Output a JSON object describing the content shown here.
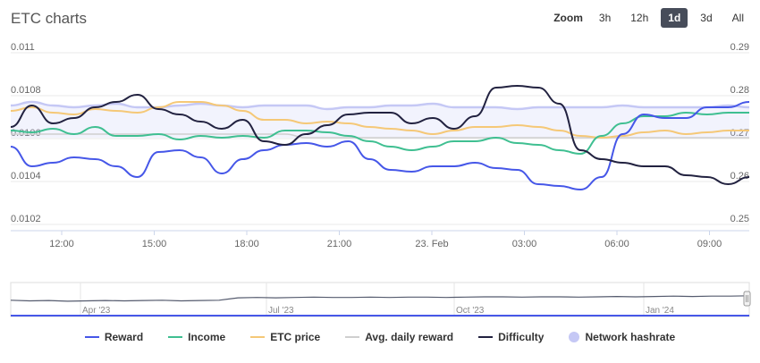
{
  "header": {
    "title": "ETC charts",
    "zoom_label": "Zoom",
    "zoom_buttons": [
      "3h",
      "12h",
      "1d",
      "3d",
      "All"
    ],
    "zoom_active": "1d"
  },
  "legend": {
    "items": [
      {
        "label": "Reward",
        "color": "#4657e8",
        "kind": "line"
      },
      {
        "label": "Income",
        "color": "#3fbf91",
        "kind": "line"
      },
      {
        "label": "ETC price",
        "color": "#f5c877",
        "kind": "line"
      },
      {
        "label": "Avg. daily reward",
        "color": "#cfcfcf",
        "kind": "line"
      },
      {
        "label": "Difficulty",
        "color": "#222240",
        "kind": "line"
      },
      {
        "label": "Network hashrate",
        "color": "#c5c8f5",
        "kind": "dot"
      }
    ]
  },
  "chart_data": {
    "type": "line",
    "x_ticks": [
      "12:00",
      "15:00",
      "18:00",
      "21:00",
      "23. Feb",
      "03:00",
      "06:00",
      "09:00"
    ],
    "y_left_ticks": [
      "0.011",
      "0.0108",
      "0.0106",
      "0.0104",
      "0.0102"
    ],
    "y_right_ticks": [
      "0.29",
      "0.28",
      "0.27",
      "0.26",
      "0.25"
    ],
    "y_left_range": [
      0.0101,
      0.0111
    ],
    "y_right_range": [
      0.245,
      0.29
    ],
    "grid": true,
    "legend_position": "bottom",
    "series": [
      {
        "name": "Network hashrate",
        "axis": "left",
        "color": "#c5c8f5",
        "values": [
          0.0108,
          0.01082,
          0.0108,
          0.01079,
          0.0108,
          0.01081,
          0.01079,
          0.01079,
          0.0108,
          0.01081,
          0.0108,
          0.01079,
          0.0108,
          0.0108,
          0.0108,
          0.01078,
          0.01079,
          0.01079,
          0.0108,
          0.0108,
          0.01081,
          0.01079,
          0.01079,
          0.01079,
          0.01078,
          0.01079,
          0.01079,
          0.01079,
          0.01079,
          0.0108,
          0.01079,
          0.01079,
          0.01079,
          0.01079,
          0.0108,
          0.01079
        ]
      },
      {
        "name": "Avg. daily reward",
        "axis": "left",
        "color": "#cfcfcf",
        "values": [
          0.01064,
          0.01064,
          0.01064,
          0.01064,
          0.01064,
          0.01064,
          0.01064,
          0.01064,
          0.01064,
          0.01064,
          0.01064,
          0.01064,
          0.01064,
          0.01064,
          0.01062,
          0.01062,
          0.01062,
          0.01062,
          0.01062,
          0.01062,
          0.01062,
          0.01062,
          0.01062,
          0.01062,
          0.01062,
          0.01062,
          0.01062,
          0.01062,
          0.01062,
          0.01062,
          0.01062,
          0.01062,
          0.01062,
          0.01062,
          0.01062,
          0.01062
        ]
      },
      {
        "name": "ETC price",
        "axis": "left",
        "color": "#f5c877",
        "values": [
          0.01077,
          0.01079,
          0.01076,
          0.01075,
          0.01078,
          0.01077,
          0.01076,
          0.01079,
          0.01082,
          0.01082,
          0.0108,
          0.01077,
          0.01072,
          0.01072,
          0.0107,
          0.01071,
          0.0107,
          0.01068,
          0.01067,
          0.01066,
          0.01064,
          0.01066,
          0.01068,
          0.01068,
          0.01069,
          0.01068,
          0.01066,
          0.01063,
          0.01062,
          0.01063,
          0.01065,
          0.01066,
          0.01064,
          0.01065,
          0.01066,
          0.01066
        ]
      },
      {
        "name": "Income",
        "axis": "left",
        "color": "#3fbf91",
        "values": [
          0.01066,
          0.01065,
          0.01067,
          0.01064,
          0.01068,
          0.01063,
          0.01063,
          0.01064,
          0.01061,
          0.01063,
          0.01062,
          0.01063,
          0.01062,
          0.01066,
          0.01066,
          0.01065,
          0.01063,
          0.0106,
          0.01057,
          0.01055,
          0.01057,
          0.0106,
          0.0106,
          0.01062,
          0.01059,
          0.01058,
          0.01055,
          0.01053,
          0.01063,
          0.0107,
          0.01074,
          0.01074,
          0.01076,
          0.01075,
          0.01076,
          0.01076
        ]
      },
      {
        "name": "Reward",
        "axis": "left",
        "color": "#4657e8",
        "values": [
          0.01057,
          0.01046,
          0.01048,
          0.01051,
          0.0105,
          0.01046,
          0.0104,
          0.01054,
          0.01055,
          0.01051,
          0.01042,
          0.0105,
          0.01055,
          0.01058,
          0.01059,
          0.01057,
          0.0106,
          0.0105,
          0.01044,
          0.01043,
          0.01046,
          0.01046,
          0.01048,
          0.01045,
          0.01044,
          0.01036,
          0.01035,
          0.01033,
          0.0104,
          0.01064,
          0.01075,
          0.01073,
          0.01073,
          0.01079,
          0.01079,
          0.01082
        ]
      },
      {
        "name": "Difficulty",
        "axis": "left",
        "color": "#222240",
        "values": [
          0.01068,
          0.0108,
          0.0107,
          0.01073,
          0.01079,
          0.01082,
          0.01086,
          0.01078,
          0.01075,
          0.01071,
          0.01067,
          0.01072,
          0.0106,
          0.01058,
          0.01064,
          0.01069,
          0.01075,
          0.01076,
          0.01076,
          0.0107,
          0.01073,
          0.01067,
          0.01074,
          0.0109,
          0.01091,
          0.0109,
          0.01081,
          0.01055,
          0.0105,
          0.01048,
          0.01046,
          0.01046,
          0.01041,
          0.0104,
          0.01036,
          0.0104
        ]
      }
    ]
  },
  "navigator": {
    "labels": [
      "Apr '23",
      "Jul '23",
      "Oct '23",
      "Jan '24"
    ],
    "series": [
      0.48,
      0.46,
      0.47,
      0.45,
      0.46,
      0.47,
      0.46,
      0.47,
      0.48,
      0.46,
      0.47,
      0.48,
      0.55,
      0.56,
      0.55,
      0.56,
      0.57,
      0.56,
      0.56,
      0.57,
      0.56,
      0.57,
      0.57,
      0.56,
      0.57,
      0.58,
      0.58,
      0.57,
      0.58,
      0.58,
      0.57,
      0.58,
      0.59,
      0.58,
      0.59,
      0.6,
      0.59,
      0.6,
      0.6,
      0.61
    ]
  }
}
